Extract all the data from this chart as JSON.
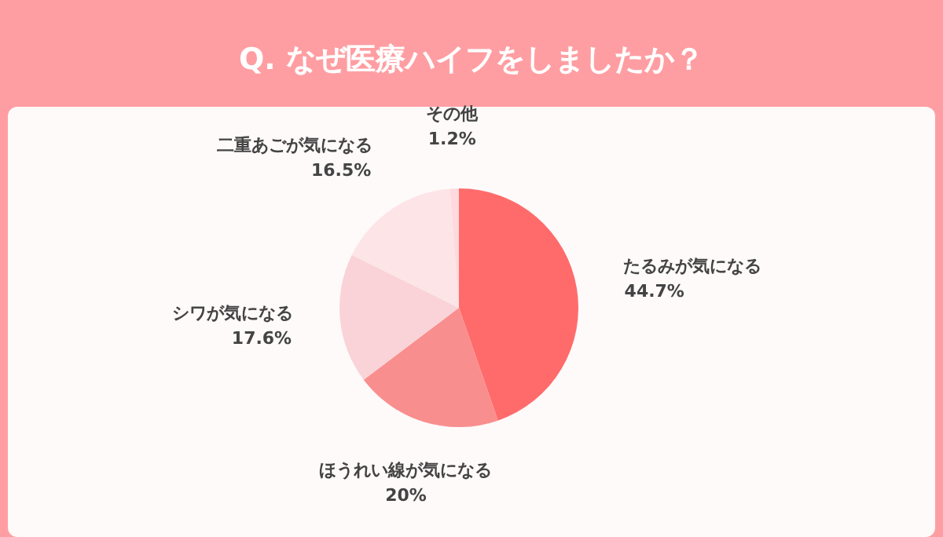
{
  "chart_data": {
    "type": "pie",
    "title": "Q. なぜ医療ハイフをしましたか？",
    "categories": [
      "たるみが気になる",
      "ほうれい線が気になる",
      "シワが気になる",
      "二重あごが気になる",
      "その他"
    ],
    "values": [
      44.7,
      20,
      17.6,
      16.5,
      1.2
    ],
    "value_labels": [
      "44.7%",
      "20%",
      "17.6%",
      "16.5%",
      "1.2%"
    ],
    "colors": [
      "#ff6b6b",
      "#f98e8e",
      "#f9d3d8",
      "#fce4e7",
      "#ffd9de"
    ]
  }
}
